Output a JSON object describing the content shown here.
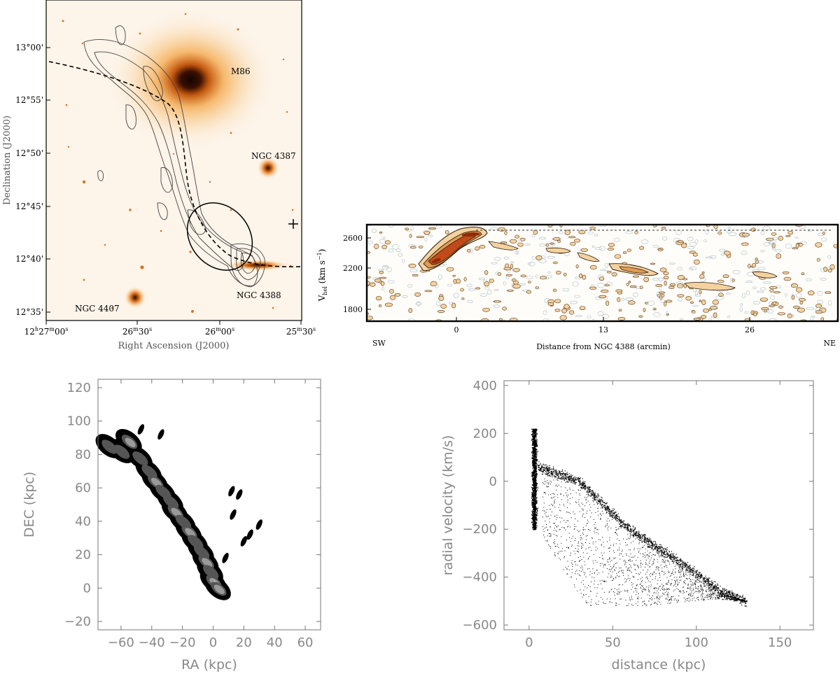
{
  "figure": {
    "panels": [
      {
        "id": "a",
        "type": "image-with-contours",
        "xlabel": "Right Ascension (J2000)",
        "ylabel": "Declination (J2000)",
        "x_ticks": [
          "12h27m00s",
          "26m30s",
          "26m00s",
          "25m30s"
        ],
        "x_ticks_parts": [
          {
            "main": "12",
            "sup1": "h",
            "mid": "27",
            "sup2": "m",
            "end": "00",
            "sup3": "s"
          },
          {
            "main": "",
            "sup1": "",
            "mid": "26",
            "sup2": "m",
            "end": "30",
            "sup3": "s"
          },
          {
            "main": "",
            "sup1": "",
            "mid": "26",
            "sup2": "m",
            "end": "00",
            "sup3": "s"
          },
          {
            "main": "",
            "sup1": "",
            "mid": "25",
            "sup2": "m",
            "end": "30",
            "sup3": "s"
          }
        ],
        "y_ticks": [
          "13°00'",
          "12°55'",
          "12°50'",
          "12°45'",
          "12°40'",
          "12°35'"
        ],
        "labels": [
          "M86",
          "NGC 4387",
          "NGC 4388",
          "NGC 4407"
        ],
        "colors": {
          "background": "#fdf4ea",
          "glow": "#f3a545",
          "core": "#1a0800",
          "contour": "#444444"
        }
      },
      {
        "id": "b",
        "type": "position-velocity-diagram",
        "ylabel_main": "V",
        "ylabel_sub": "hel",
        "ylabel_unit": "(km s",
        "ylabel_exp": "−1",
        "ylabel_close": ")",
        "xlabel": "Distance from NGC 4388 (arcmin)",
        "x_ticks": [
          0,
          13,
          26
        ],
        "y_ticks": [
          2600,
          2200,
          1800
        ],
        "left_label": "SW",
        "right_label": "NE",
        "colors": {
          "fill_outer": "#f4d2a0",
          "fill_mid": "#e09a55",
          "fill_inner": "#c24a1a",
          "neg_contour": "#a9bfc8"
        }
      }
    ]
  },
  "chart_data": [
    {
      "type": "heatmap",
      "title": "",
      "xlabel": "RA (kpc)",
      "ylabel": "DEC (kpc)",
      "xlim": [
        -75,
        70
      ],
      "ylim": [
        -25,
        125
      ],
      "x_ticks": [
        -60,
        -40,
        -20,
        0,
        20,
        40,
        60
      ],
      "y_ticks": [
        -20,
        0,
        20,
        40,
        60,
        80,
        100,
        120
      ],
      "x_tick_labels": [
        "−60",
        "−40",
        "−20",
        "0",
        "20",
        "40",
        "60"
      ],
      "y_tick_labels": [
        "−20",
        "0",
        "20",
        "40",
        "60",
        "80",
        "100",
        "120"
      ],
      "blobs": [
        {
          "x": -68,
          "y": 85,
          "level": 1
        },
        {
          "x": -60,
          "y": 82,
          "level": 1
        },
        {
          "x": -55,
          "y": 88,
          "level": 2
        },
        {
          "x": -48,
          "y": 78,
          "level": 1
        },
        {
          "x": -42,
          "y": 70,
          "level": 1
        },
        {
          "x": -38,
          "y": 64,
          "level": 2
        },
        {
          "x": -33,
          "y": 58,
          "level": 1
        },
        {
          "x": -28,
          "y": 52,
          "level": 1
        },
        {
          "x": -25,
          "y": 46,
          "level": 2
        },
        {
          "x": -20,
          "y": 40,
          "level": 1
        },
        {
          "x": -16,
          "y": 34,
          "level": 2
        },
        {
          "x": -12,
          "y": 28,
          "level": 1
        },
        {
          "x": -8,
          "y": 22,
          "level": 1
        },
        {
          "x": -5,
          "y": 16,
          "level": 2
        },
        {
          "x": -2,
          "y": 10,
          "level": 1
        },
        {
          "x": 0,
          "y": 4,
          "level": 3
        },
        {
          "x": 3,
          "y": 0,
          "level": 2
        }
      ],
      "isolated": [
        {
          "x": -47,
          "y": 95
        },
        {
          "x": -34,
          "y": 92
        },
        {
          "x": 12,
          "y": 58
        },
        {
          "x": 17,
          "y": 56
        },
        {
          "x": 13,
          "y": 44
        },
        {
          "x": 20,
          "y": 28
        },
        {
          "x": 24,
          "y": 32
        },
        {
          "x": 30,
          "y": 38
        },
        {
          "x": 8,
          "y": 18
        }
      ]
    },
    {
      "type": "scatter",
      "title": "",
      "xlabel": "distance (kpc)",
      "ylabel": "radial velocity (km/s)",
      "xlim": [
        -15,
        170
      ],
      "ylim": [
        -620,
        420
      ],
      "x_ticks": [
        0,
        50,
        100,
        150
      ],
      "y_ticks": [
        -600,
        -400,
        -200,
        0,
        200,
        400
      ],
      "x_tick_labels": [
        "0",
        "50",
        "100",
        "150"
      ],
      "y_tick_labels": [
        "−600",
        "−400",
        "−200",
        "0",
        "200",
        "400"
      ],
      "ridge": [
        [
          5,
          60
        ],
        [
          30,
          0
        ],
        [
          60,
          -200
        ],
        [
          95,
          -360
        ],
        [
          115,
          -460
        ],
        [
          130,
          -500
        ]
      ],
      "lower_edge": [
        [
          5,
          -200
        ],
        [
          25,
          -420
        ],
        [
          35,
          -520
        ],
        [
          70,
          -520
        ],
        [
          110,
          -490
        ],
        [
          130,
          -500
        ]
      ]
    }
  ]
}
